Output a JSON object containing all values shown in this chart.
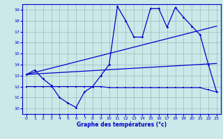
{
  "title": "Graphe des températures (°c)",
  "background_color": "#cce8e8",
  "line_color": "#0000cc",
  "xlim": [
    -0.5,
    23.5
  ],
  "ylim": [
    9.5,
    19.5
  ],
  "xticks": [
    0,
    1,
    2,
    3,
    4,
    5,
    6,
    7,
    8,
    9,
    10,
    11,
    12,
    13,
    14,
    15,
    16,
    17,
    18,
    19,
    20,
    21,
    22,
    23
  ],
  "yticks": [
    10,
    11,
    12,
    13,
    14,
    15,
    16,
    17,
    18,
    19
  ],
  "curve_main_x": [
    0,
    1,
    2,
    3,
    4,
    5,
    6,
    7,
    8,
    9,
    10,
    11,
    12,
    13,
    14,
    15,
    16,
    17,
    18,
    19,
    20,
    21,
    22,
    23
  ],
  "curve_main_y": [
    13.1,
    13.5,
    12.7,
    12.1,
    11.0,
    10.5,
    10.1,
    11.5,
    12.0,
    13.0,
    14.0,
    19.3,
    18.0,
    16.5,
    16.5,
    19.1,
    19.1,
    17.4,
    19.2,
    18.3,
    17.5,
    16.7,
    14.0,
    11.5
  ],
  "curve_trend1_x": [
    0,
    23
  ],
  "curve_trend1_y": [
    13.1,
    14.1
  ],
  "curve_trend2_x": [
    0,
    23
  ],
  "curve_trend2_y": [
    13.1,
    17.5
  ],
  "curve_min_x": [
    0,
    1,
    2,
    3,
    4,
    5,
    6,
    7,
    8,
    9,
    10,
    11,
    12,
    13,
    14,
    15,
    16,
    17,
    18,
    19,
    20,
    21,
    22,
    23
  ],
  "curve_min_y": [
    12.0,
    12.0,
    12.0,
    12.0,
    12.0,
    12.0,
    12.0,
    12.0,
    12.0,
    12.0,
    11.9,
    11.9,
    11.9,
    11.9,
    11.9,
    11.9,
    11.9,
    11.9,
    11.9,
    11.9,
    11.9,
    11.9,
    11.7,
    11.5
  ]
}
